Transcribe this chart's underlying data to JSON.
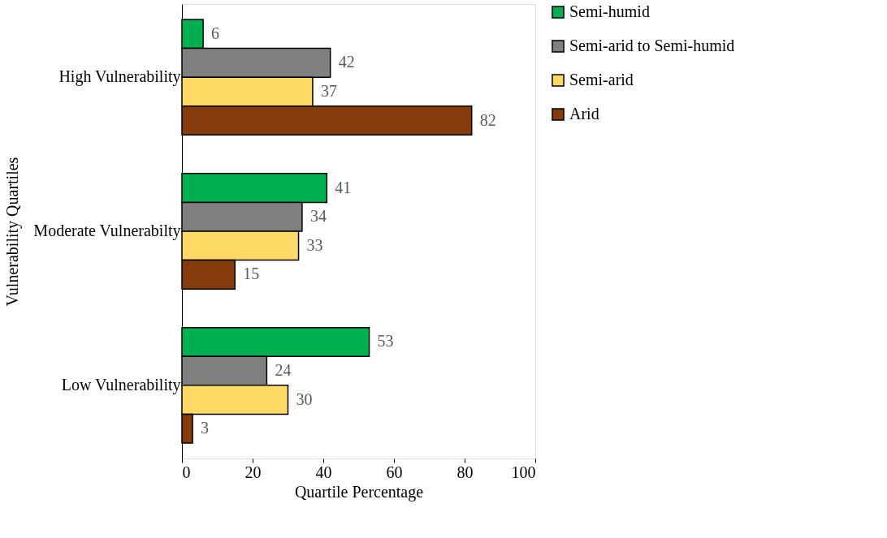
{
  "chart_data": {
    "type": "bar",
    "orientation": "horizontal",
    "xlabel": "Quartile Percentage",
    "ylabel": "Vulnerability Quartiles",
    "categories": [
      "High Vulnerability",
      "Moderate Vulnerabilty",
      "Low Vulnerability"
    ],
    "series": [
      {
        "name": "Semi-humid",
        "color": "#00b050",
        "values": [
          6,
          41,
          53
        ]
      },
      {
        "name": "Semi-arid to Semi-humid",
        "color": "#808080",
        "values": [
          42,
          34,
          24
        ]
      },
      {
        "name": "Semi-arid",
        "color": "#ffd966",
        "values": [
          37,
          33,
          30
        ]
      },
      {
        "name": "Arid",
        "color": "#843c0c",
        "values": [
          82,
          15,
          3
        ]
      }
    ],
    "xlim": [
      0,
      100
    ],
    "xticks": [
      0,
      20,
      40,
      60,
      80,
      100
    ],
    "data_labels": true,
    "grid": false,
    "legend": "right"
  }
}
